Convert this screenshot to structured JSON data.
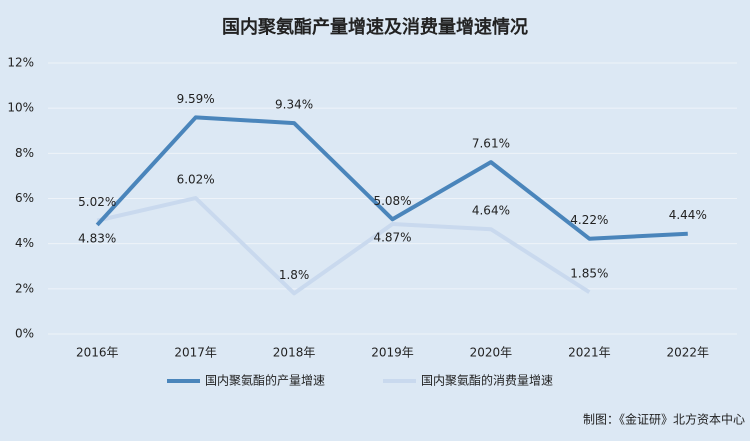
{
  "chart_data": {
    "type": "line",
    "title": "国内聚氨酯产量增速及消费量增速情况",
    "categories": [
      "2016年",
      "2017年",
      "2018年",
      "2019年",
      "2020年",
      "2021年",
      "2022年"
    ],
    "series": [
      {
        "name": "国内聚氨酯的产量增速",
        "color": "#4a85bb",
        "values": [
          4.83,
          9.59,
          9.34,
          5.08,
          7.61,
          4.22,
          4.44
        ],
        "value_labels": [
          "4.83%",
          "9.59%",
          "9.34%",
          "5.08%",
          "7.61%",
          "4.22%",
          "4.44%"
        ]
      },
      {
        "name": "国内聚氨酯的消费量增速",
        "color": "#c9d9ee",
        "values": [
          5.02,
          6.02,
          1.8,
          4.87,
          4.64,
          1.85,
          null
        ],
        "value_labels": [
          "5.02%",
          "6.02%",
          "1.8%",
          "4.87%",
          "4.64%",
          "1.85%",
          null
        ]
      }
    ],
    "ylim": [
      0,
      12
    ],
    "yticks": [
      {
        "value": 0,
        "label": "0%"
      },
      {
        "value": 2,
        "label": "2%"
      },
      {
        "value": 4,
        "label": "4%"
      },
      {
        "value": 6,
        "label": "6%"
      },
      {
        "value": 8,
        "label": "8%"
      },
      {
        "value": 10,
        "label": "10%"
      },
      {
        "value": 12,
        "label": "12%"
      }
    ],
    "grid": true,
    "legend": "bottom",
    "source": "制图：《金证研》北方资本中心"
  }
}
